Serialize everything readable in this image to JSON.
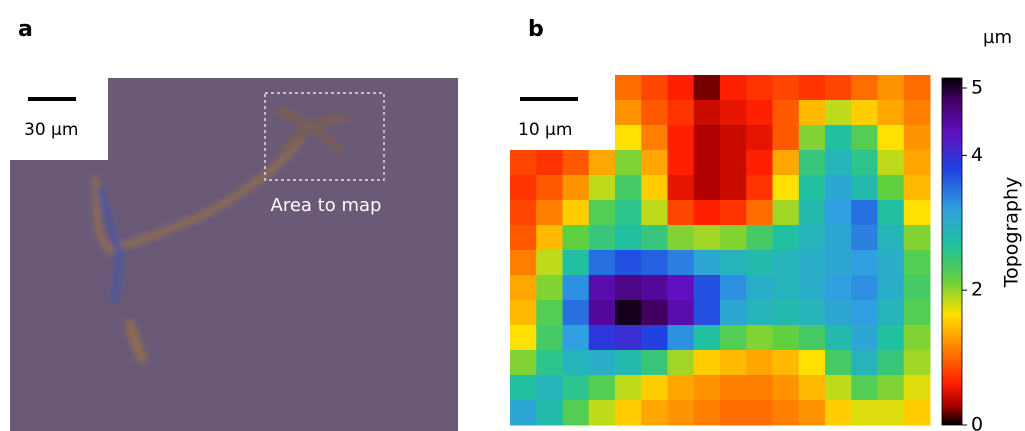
{
  "panel_a": {
    "label": "a",
    "scale_bar": "30 µm",
    "annotation": "Area to map"
  },
  "panel_b": {
    "label": "b",
    "scale_bar": "10 µm",
    "heatmap": {
      "values": [
        [
          null,
          null,
          null,
          null,
          1.0,
          0.8,
          0.6,
          0.2,
          0.6,
          0.7,
          0.8,
          0.7,
          0.8,
          1.0,
          1.2,
          1.0
        ],
        [
          null,
          null,
          null,
          null,
          1.2,
          0.9,
          0.7,
          0.4,
          0.5,
          0.6,
          0.9,
          1.4,
          1.8,
          1.5,
          1.3,
          1.1
        ],
        [
          null,
          null,
          null,
          null,
          1.6,
          1.1,
          0.6,
          0.3,
          0.4,
          0.5,
          0.9,
          2.0,
          2.6,
          2.2,
          1.6,
          1.2
        ],
        [
          0.8,
          0.7,
          0.9,
          1.3,
          2.0,
          1.3,
          0.6,
          0.3,
          0.4,
          0.6,
          1.3,
          2.4,
          2.8,
          2.5,
          1.8,
          1.3
        ],
        [
          0.7,
          0.9,
          1.2,
          1.8,
          2.3,
          1.5,
          0.5,
          0.3,
          0.4,
          0.7,
          1.6,
          2.6,
          3.0,
          2.7,
          2.1,
          1.4
        ],
        [
          0.8,
          1.1,
          1.5,
          2.2,
          2.5,
          1.8,
          0.8,
          0.6,
          0.7,
          1.0,
          1.9,
          2.7,
          3.1,
          3.4,
          2.6,
          1.6
        ],
        [
          0.9,
          1.4,
          2.1,
          2.4,
          2.6,
          2.4,
          2.0,
          1.9,
          2.0,
          2.3,
          2.6,
          2.8,
          3.0,
          3.3,
          2.8,
          2.0
        ],
        [
          1.1,
          1.8,
          2.6,
          3.4,
          3.6,
          3.5,
          3.3,
          3.0,
          2.8,
          2.7,
          2.8,
          2.9,
          3.0,
          3.1,
          2.9,
          2.2
        ],
        [
          1.3,
          2.0,
          3.2,
          4.3,
          4.5,
          4.4,
          4.2,
          3.6,
          3.2,
          2.9,
          2.8,
          2.9,
          3.1,
          3.2,
          2.9,
          2.3
        ],
        [
          1.4,
          2.2,
          3.4,
          4.4,
          4.9,
          4.7,
          4.3,
          3.6,
          3.0,
          2.8,
          2.7,
          2.8,
          3.0,
          3.1,
          2.8,
          2.2
        ],
        [
          1.6,
          2.3,
          3.1,
          3.8,
          3.9,
          3.7,
          3.2,
          2.6,
          2.2,
          2.0,
          2.1,
          2.3,
          2.7,
          3.0,
          2.6,
          2.0
        ],
        [
          2.0,
          2.5,
          2.8,
          2.9,
          2.7,
          2.4,
          1.9,
          1.5,
          1.4,
          1.3,
          1.4,
          1.6,
          2.3,
          2.8,
          2.4,
          1.9
        ],
        [
          2.6,
          2.8,
          2.5,
          2.2,
          1.8,
          1.5,
          1.3,
          1.2,
          1.1,
          1.1,
          1.2,
          1.4,
          1.8,
          2.2,
          2.0,
          1.7
        ],
        [
          3.0,
          2.7,
          2.2,
          1.8,
          1.5,
          1.3,
          1.2,
          1.1,
          1.0,
          1.0,
          1.1,
          1.2,
          1.5,
          1.7,
          1.7,
          1.5
        ]
      ]
    },
    "colorbar": {
      "unit": "µm",
      "title": "Topography",
      "lim": [
        0,
        5
      ],
      "ticks": [
        0,
        2,
        4,
        5
      ]
    }
  }
}
